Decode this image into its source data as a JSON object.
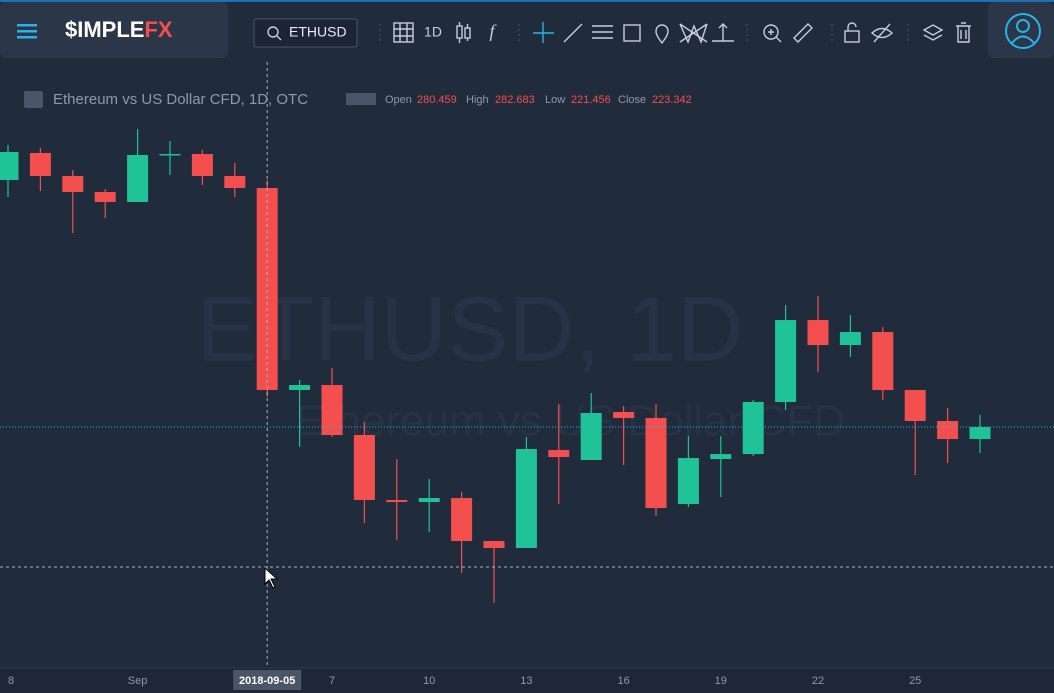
{
  "brand": {
    "left": "$IMPLE",
    "right": "FX"
  },
  "toolbar": {
    "symbol": "ETHUSD",
    "interval": "1D",
    "function": "f"
  },
  "legend": {
    "title": "Ethereum vs US Dollar CFD, 1D, OTC",
    "open": "Open",
    "high": "High",
    "low": "Low",
    "close": "Close"
  },
  "watermark": {
    "line1": "ETHUSD, 1D",
    "line2": "Ethereum vs US Dollar CFD"
  },
  "chart_data": {
    "type": "candlestick",
    "up_color": "#1fc397",
    "down_color": "#f44f4f",
    "crosshair_label": "2018-09-05",
    "crosshair_index": 8,
    "categories": [
      "8",
      null,
      null,
      null,
      "Sep",
      null,
      null,
      null,
      null,
      null,
      "7",
      null,
      null,
      "10",
      null,
      null,
      "13",
      null,
      null,
      "16",
      null,
      null,
      "19",
      null,
      null,
      "22",
      null,
      null,
      "25",
      null,
      null
    ],
    "open": [
      282.72,
      290.36,
      283.85,
      279.33,
      276.5,
      289.79,
      290.07,
      283.85,
      280.459,
      223.34,
      224.75,
      210.62,
      192.24,
      191.67,
      192.8,
      180.64,
      178.67,
      206.37,
      203.55,
      217.12,
      215.42,
      191.1,
      203.83,
      205.24,
      219.95,
      243.13,
      236.06,
      239.74,
      223.34,
      214.58,
      209.48
    ],
    "high": [
      292.62,
      291.77,
      285.55,
      280.18,
      297.14,
      293.75,
      291.2,
      287.53,
      282.683,
      226.17,
      229.56,
      214.29,
      203.83,
      198.18,
      194.5,
      180.64,
      210.05,
      219.38,
      222.49,
      218.81,
      219.38,
      210.33,
      210.33,
      220.51,
      247.38,
      249.92,
      244.55,
      241.16,
      223.34,
      218.25,
      216.27
    ],
    "low": [
      277.91,
      279.61,
      267.73,
      271.97,
      276.5,
      284.13,
      281.3,
      277.91,
      221.456,
      207.22,
      210.05,
      185.73,
      180.93,
      183.19,
      171.6,
      163.12,
      178.67,
      191.1,
      203.55,
      202.13,
      187.71,
      190.26,
      193.09,
      204.68,
      217.68,
      228.43,
      232.67,
      220.51,
      199.31,
      202.7,
      205.53
    ],
    "close": [
      290.64,
      283.85,
      279.33,
      276.5,
      289.79,
      290.07,
      283.85,
      280.46,
      223.342,
      224.75,
      210.62,
      192.24,
      191.67,
      192.8,
      180.64,
      178.67,
      206.66,
      204.39,
      216.84,
      215.42,
      189.97,
      204.11,
      205.24,
      219.95,
      243.13,
      236.06,
      239.74,
      223.34,
      214.58,
      209.48,
      212.88
    ]
  }
}
